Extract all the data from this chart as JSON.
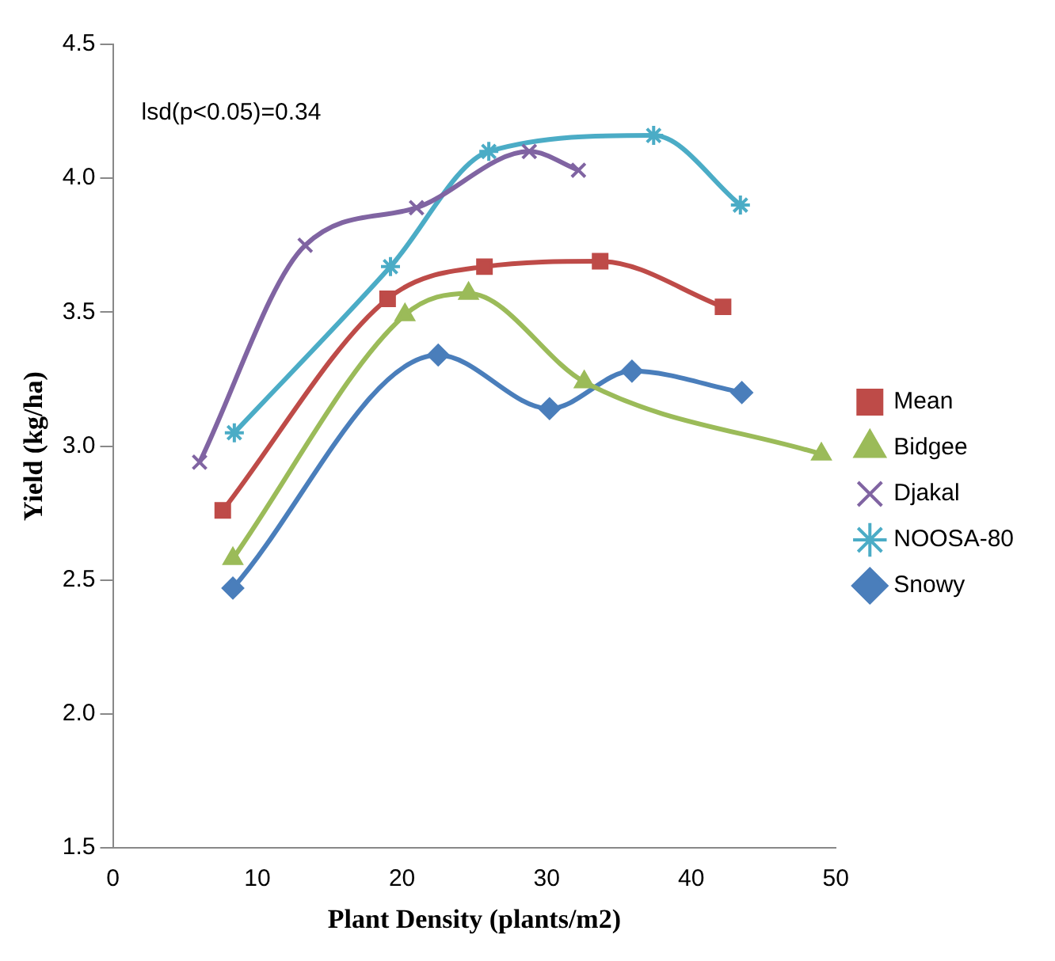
{
  "chart_data": {
    "type": "line",
    "xlabel": "Plant Density (plants/m2)",
    "ylabel": "Yield (kg/ha)",
    "annotations": [
      "lsd(p<0.05)=0.34"
    ],
    "xlim": [
      0,
      50
    ],
    "xticks": [
      0,
      10,
      20,
      30,
      40,
      50
    ],
    "ylim": [
      1.5,
      4.5
    ],
    "yticks": [
      {
        "value": 1.5,
        "label": "1.5"
      },
      {
        "value": 2,
        "label": "2.0"
      },
      {
        "value": 2.5,
        "label": "2.5"
      },
      {
        "value": 3,
        "label": "3.0"
      },
      {
        "value": 3.5,
        "label": "3.5"
      },
      {
        "value": 4,
        "label": "4.0"
      },
      {
        "value": 4.5,
        "label": "4.5"
      }
    ],
    "grid": false,
    "legend": "right",
    "line_style": "solid",
    "series": [
      {
        "name": "Mean",
        "color": "#be4b48",
        "marker": "square",
        "x": [
          7.6,
          19,
          25.7,
          33.7,
          42.2
        ],
        "values": [
          2.76,
          3.55,
          3.67,
          3.69,
          3.52
        ]
      },
      {
        "name": "Bidgee",
        "color": "#9bbb59",
        "marker": "triangle",
        "x": [
          8.3,
          20.2,
          24.6,
          32.6,
          49
        ],
        "values": [
          2.58,
          3.49,
          3.57,
          3.24,
          2.97
        ]
      },
      {
        "name": "Djakal",
        "color": "#8064a2",
        "marker": "cross",
        "x": [
          6,
          13.3,
          21,
          28.8,
          32.2
        ],
        "values": [
          2.94,
          3.75,
          3.89,
          4.1,
          4.03
        ]
      },
      {
        "name": "NOOSA-80",
        "color": "#4bacc6",
        "marker": "cross",
        "x": [
          8.4,
          19.2,
          26,
          37.4,
          43.4
        ],
        "values": [
          3.05,
          3.67,
          4.1,
          4.16,
          3.9
        ]
      },
      {
        "name": "Snowy",
        "color": "#4a7ebb",
        "marker": "diamond",
        "x": [
          8.3,
          22.5,
          30.2,
          35.9,
          43.5
        ],
        "values": [
          2.47,
          3.34,
          3.14,
          3.28,
          3.2
        ]
      }
    ]
  }
}
